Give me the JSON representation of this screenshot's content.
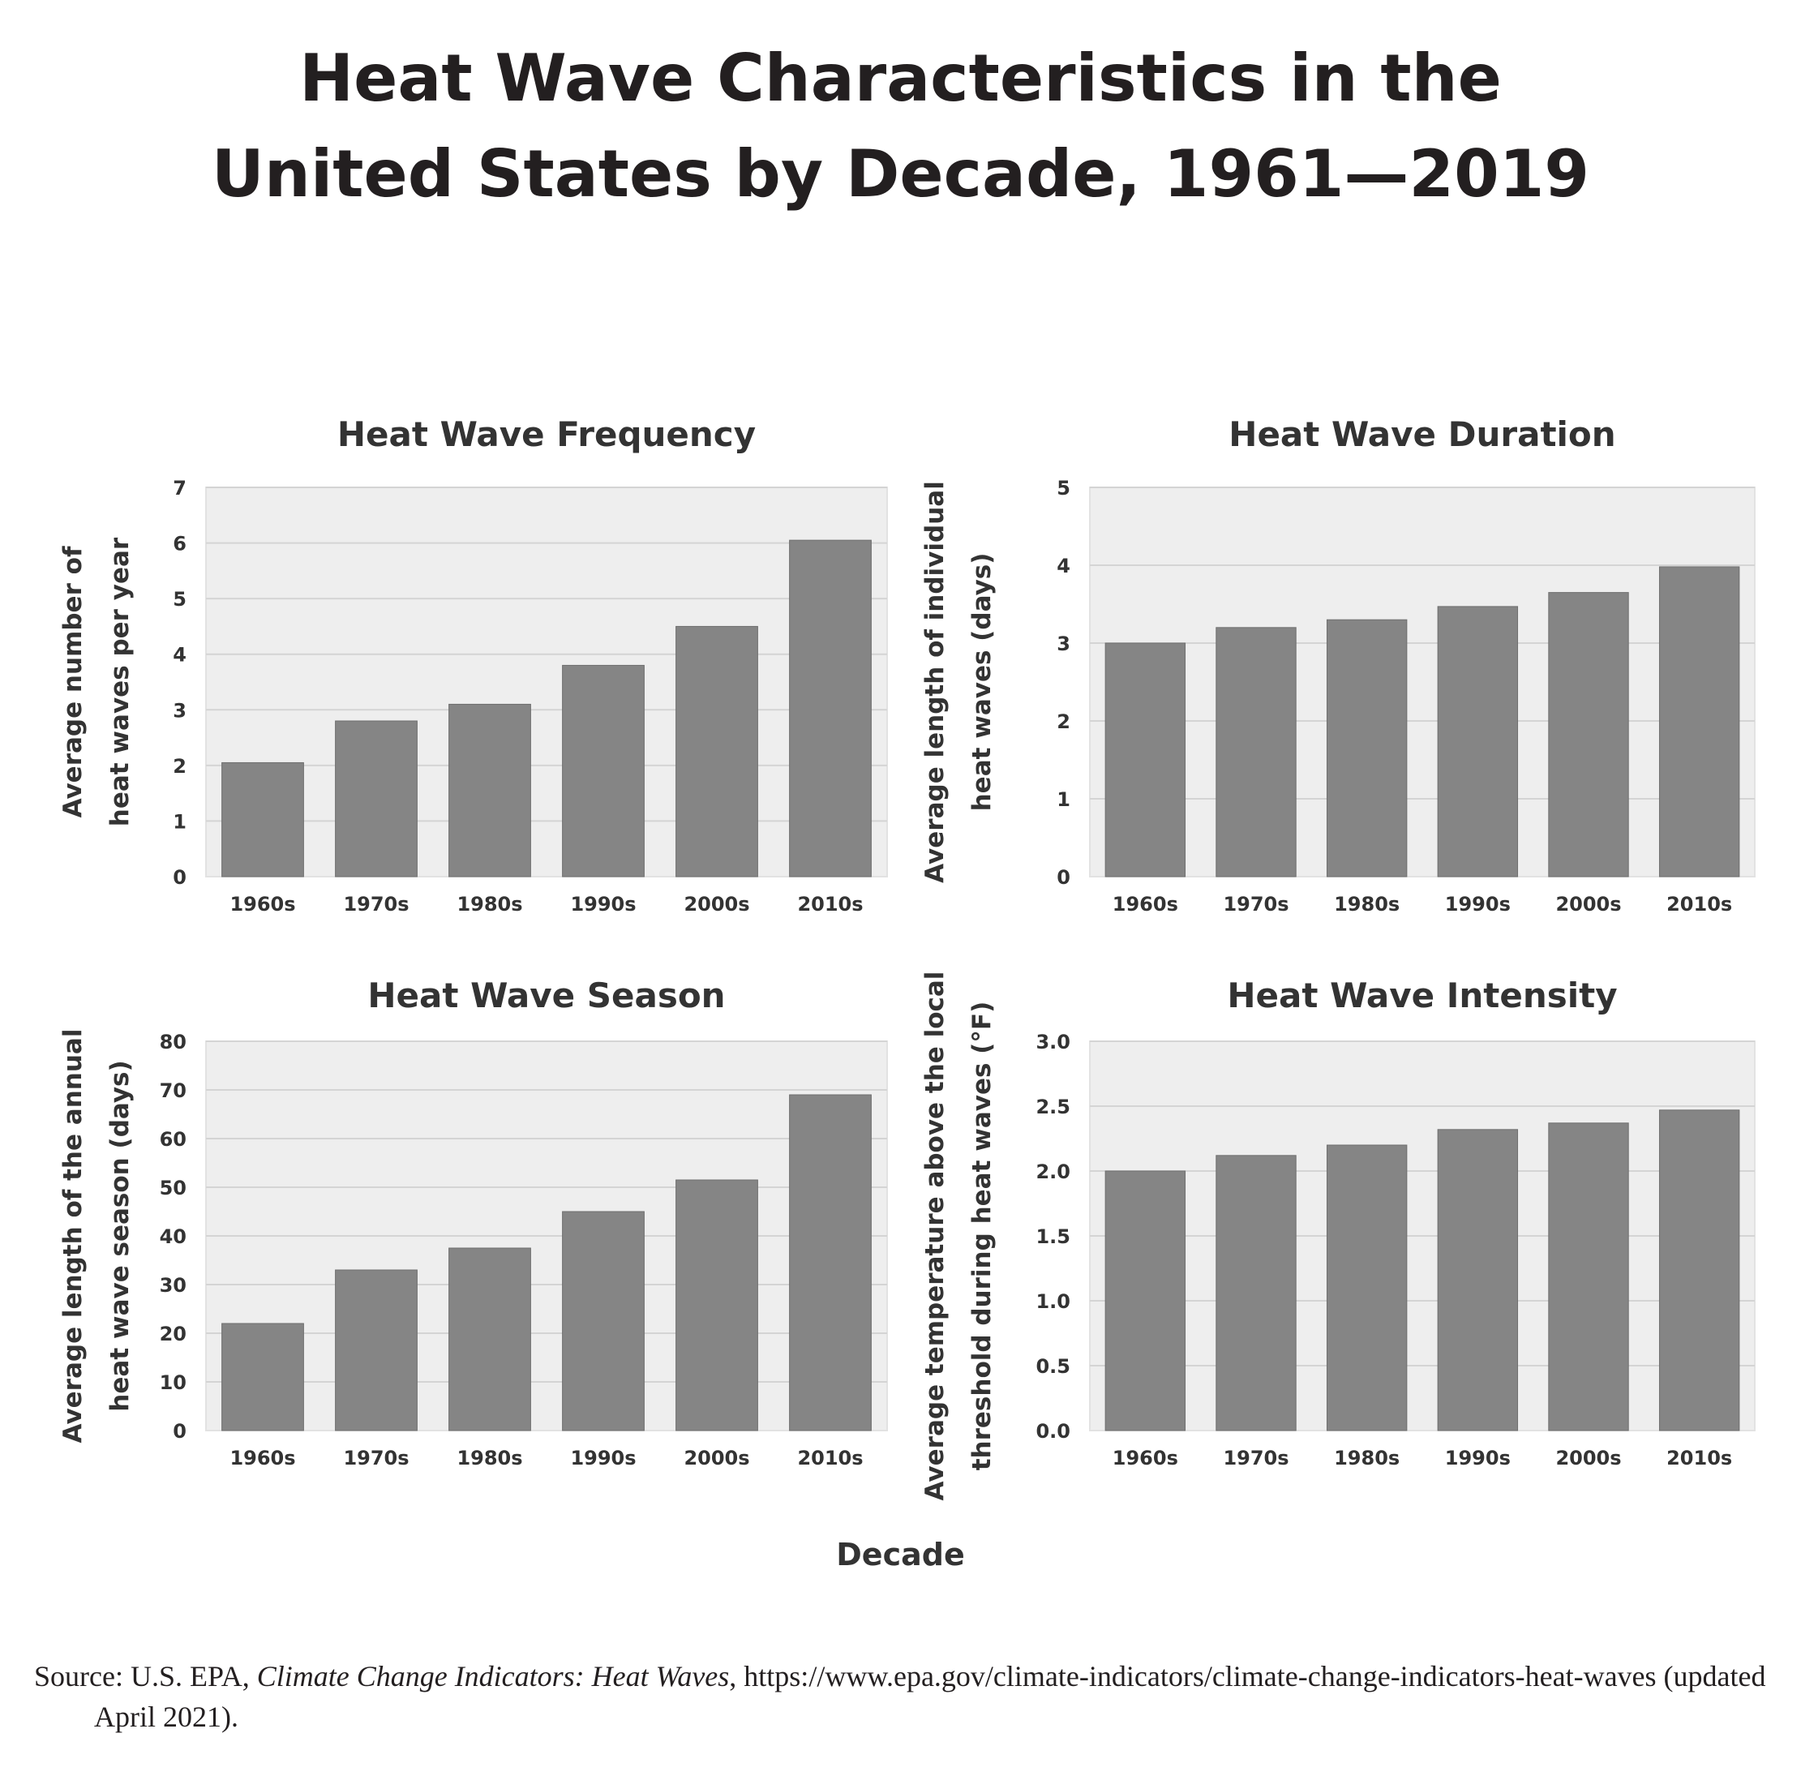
{
  "title": {
    "line1": "Heat Wave Characteristics in the",
    "line2": "United States by Decade, 1961—2019"
  },
  "shared_xlabel": "Decade",
  "source": {
    "prefix": "Source: U.S. EPA, ",
    "italic": "Climate Change Indicators: Heat Waves",
    "suffix": ", https://www.epa.gov/climate-indicators/climate-change-indicators-heat-waves (updated April 2021)."
  },
  "colors": {
    "bar": "#858585",
    "plot_bg": "#eeeeee",
    "grid": "#d4d4d4",
    "text": "#333333"
  },
  "chart_data": [
    {
      "type": "bar",
      "title": "Heat Wave Frequency",
      "ylabel_lines": [
        "Average number of",
        "heat waves per year"
      ],
      "categories": [
        "1960s",
        "1970s",
        "1980s",
        "1990s",
        "2000s",
        "2010s"
      ],
      "values": [
        2.05,
        2.8,
        3.1,
        3.8,
        4.5,
        6.05
      ],
      "ylim": [
        0,
        7
      ],
      "yticks": [
        "0",
        "1",
        "2",
        "3",
        "4",
        "5",
        "6",
        "7"
      ],
      "ytick_values": [
        0,
        1,
        2,
        3,
        4,
        5,
        6,
        7
      ],
      "grid": true
    },
    {
      "type": "bar",
      "title": "Heat Wave Duration",
      "ylabel_lines": [
        "Average length of individual",
        "heat waves (days)"
      ],
      "categories": [
        "1960s",
        "1970s",
        "1980s",
        "1990s",
        "2000s",
        "2010s"
      ],
      "values": [
        3.0,
        3.2,
        3.3,
        3.47,
        3.65,
        3.98
      ],
      "ylim": [
        0,
        5
      ],
      "yticks": [
        "0",
        "1",
        "2",
        "3",
        "4",
        "5"
      ],
      "ytick_values": [
        0,
        1,
        2,
        3,
        4,
        5
      ],
      "grid": true
    },
    {
      "type": "bar",
      "title": "Heat Wave Season",
      "ylabel_lines": [
        "Average length of the annual",
        "heat wave season (days)"
      ],
      "categories": [
        "1960s",
        "1970s",
        "1980s",
        "1990s",
        "2000s",
        "2010s"
      ],
      "values": [
        22,
        33,
        37.5,
        45,
        51.5,
        69
      ],
      "ylim": [
        0,
        80
      ],
      "yticks": [
        "0",
        "10",
        "20",
        "30",
        "40",
        "50",
        "60",
        "70",
        "80"
      ],
      "ytick_values": [
        0,
        10,
        20,
        30,
        40,
        50,
        60,
        70,
        80
      ],
      "grid": true
    },
    {
      "type": "bar",
      "title": "Heat Wave Intensity",
      "ylabel_lines": [
        "Average temperature above the local",
        "threshold during heat waves (°F)"
      ],
      "categories": [
        "1960s",
        "1970s",
        "1980s",
        "1990s",
        "2000s",
        "2010s"
      ],
      "values": [
        2.0,
        2.12,
        2.2,
        2.32,
        2.37,
        2.47
      ],
      "ylim": [
        0,
        3
      ],
      "yticks": [
        "0.0",
        "0.5",
        "1.0",
        "1.5",
        "2.0",
        "2.5",
        "3.0"
      ],
      "ytick_values": [
        0,
        0.5,
        1.0,
        1.5,
        2.0,
        2.5,
        3.0
      ],
      "grid": true
    }
  ]
}
